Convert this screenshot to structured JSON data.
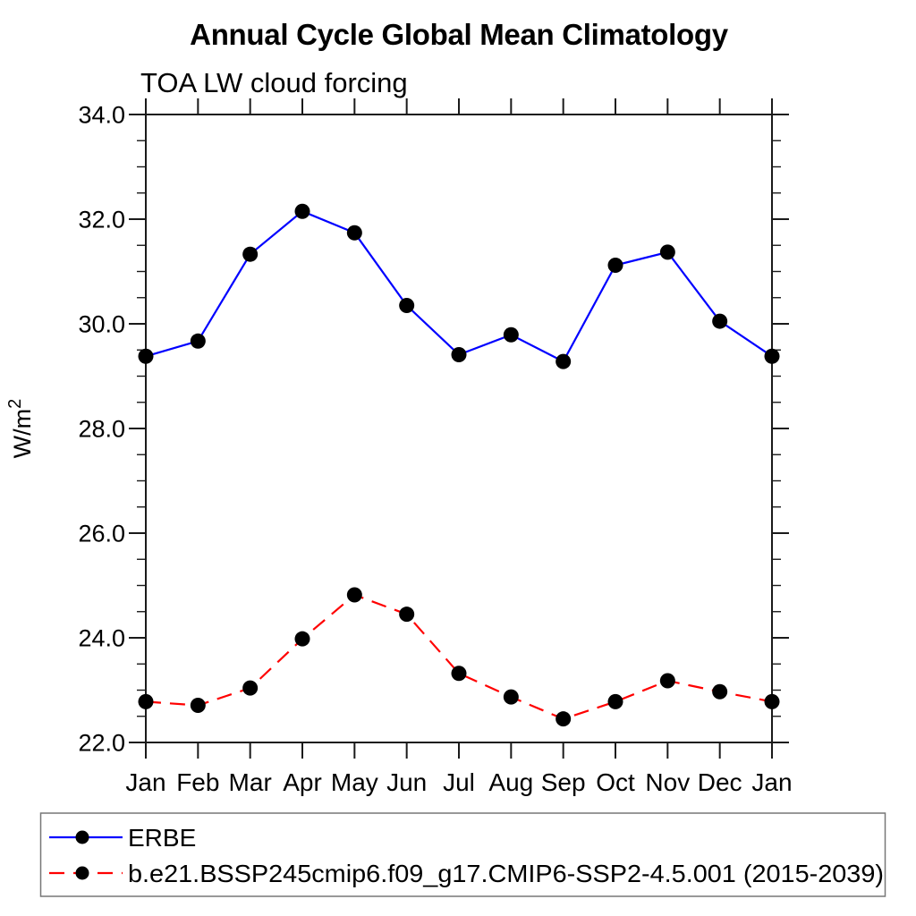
{
  "chart_data": {
    "type": "line",
    "title": "Annual Cycle Global Mean Climatology",
    "subtitle": "TOA LW cloud forcing",
    "ylabel": "W/m²",
    "categories": [
      "Jan",
      "Feb",
      "Mar",
      "Apr",
      "May",
      "Jun",
      "Jul",
      "Aug",
      "Sep",
      "Oct",
      "Nov",
      "Dec",
      "Jan"
    ],
    "ylim": [
      22.0,
      34.0
    ],
    "ytick_labels": [
      "22.0",
      "24.0",
      "26.0",
      "28.0",
      "30.0",
      "32.0",
      "34.0"
    ],
    "ytick_major_step": 2.0,
    "ytick_minor_step": 0.5,
    "grid": "off",
    "legend_position": "bottom",
    "colors": {
      "background": "#ffffff",
      "axis": "#1a1a1a",
      "marker": "#000000",
      "erbe_line": "#0000ff",
      "model_line": "#ff0000"
    },
    "series": [
      {
        "name": "ERBE",
        "color": "#0000ff",
        "line_style": "solid",
        "marker": "filled-circle",
        "marker_color": "#000000",
        "values": [
          29.38,
          29.67,
          31.33,
          32.15,
          31.74,
          30.35,
          29.41,
          29.79,
          29.28,
          31.12,
          31.37,
          30.05,
          29.38
        ]
      },
      {
        "name": "b.e21.BSSP245cmip6.f09_g17.CMIP6-SSP2-4.5.001 (2015-2039)",
        "color": "#ff0000",
        "line_style": "dashed",
        "marker": "filled-circle",
        "marker_color": "#000000",
        "values": [
          22.78,
          22.71,
          23.04,
          23.98,
          24.82,
          24.45,
          23.32,
          22.87,
          22.45,
          22.78,
          23.18,
          22.97,
          22.78
        ]
      }
    ]
  }
}
